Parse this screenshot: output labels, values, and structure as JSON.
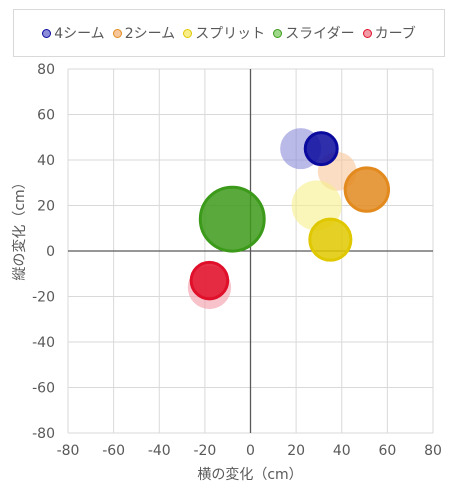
{
  "chart_data": {
    "type": "scatter",
    "title": "",
    "xlabel": "横の変化（cm）",
    "ylabel": "縦の変化（cm）",
    "xlim": [
      -80,
      80
    ],
    "ylim": [
      -80,
      80
    ],
    "xticks": [
      "-80",
      "-60",
      "-40",
      "-20",
      "0",
      "20",
      "40",
      "60",
      "80"
    ],
    "yticks": [
      "80",
      "60",
      "40",
      "20",
      "0",
      "-20",
      "-40",
      "-60",
      "-80"
    ],
    "grid": true,
    "legend_position": "top",
    "series": [
      {
        "name": "4シーム",
        "color": "#0a0a9e",
        "light_color": "#8c8cd8",
        "points": [
          {
            "x": 22,
            "y": 45,
            "size": 18,
            "faded": true
          },
          {
            "x": 31,
            "y": 45,
            "size": 14,
            "faded": false
          }
        ]
      },
      {
        "name": "2シーム",
        "color": "#e38a1e",
        "light_color": "#f6c79a",
        "points": [
          {
            "x": 38,
            "y": 35,
            "size": 17,
            "faded": true
          },
          {
            "x": 51,
            "y": 27,
            "size": 19,
            "faded": false
          }
        ]
      },
      {
        "name": "スプリット",
        "color": "#e0c800",
        "light_color": "#f7ee8a",
        "points": [
          {
            "x": 29,
            "y": 20,
            "size": 22,
            "faded": true
          },
          {
            "x": 35,
            "y": 5,
            "size": 18,
            "faded": false
          }
        ]
      },
      {
        "name": "スライダー",
        "color": "#3c9a1a",
        "light_color": "#9ed98a",
        "points": [
          {
            "x": -8,
            "y": 14,
            "size": 28,
            "faded": false
          }
        ]
      },
      {
        "name": "カーブ",
        "color": "#e0102a",
        "light_color": "#f29aa6",
        "points": [
          {
            "x": -18,
            "y": -16,
            "size": 19,
            "faded": true
          },
          {
            "x": -18,
            "y": -13,
            "size": 16,
            "faded": false
          }
        ]
      }
    ]
  }
}
